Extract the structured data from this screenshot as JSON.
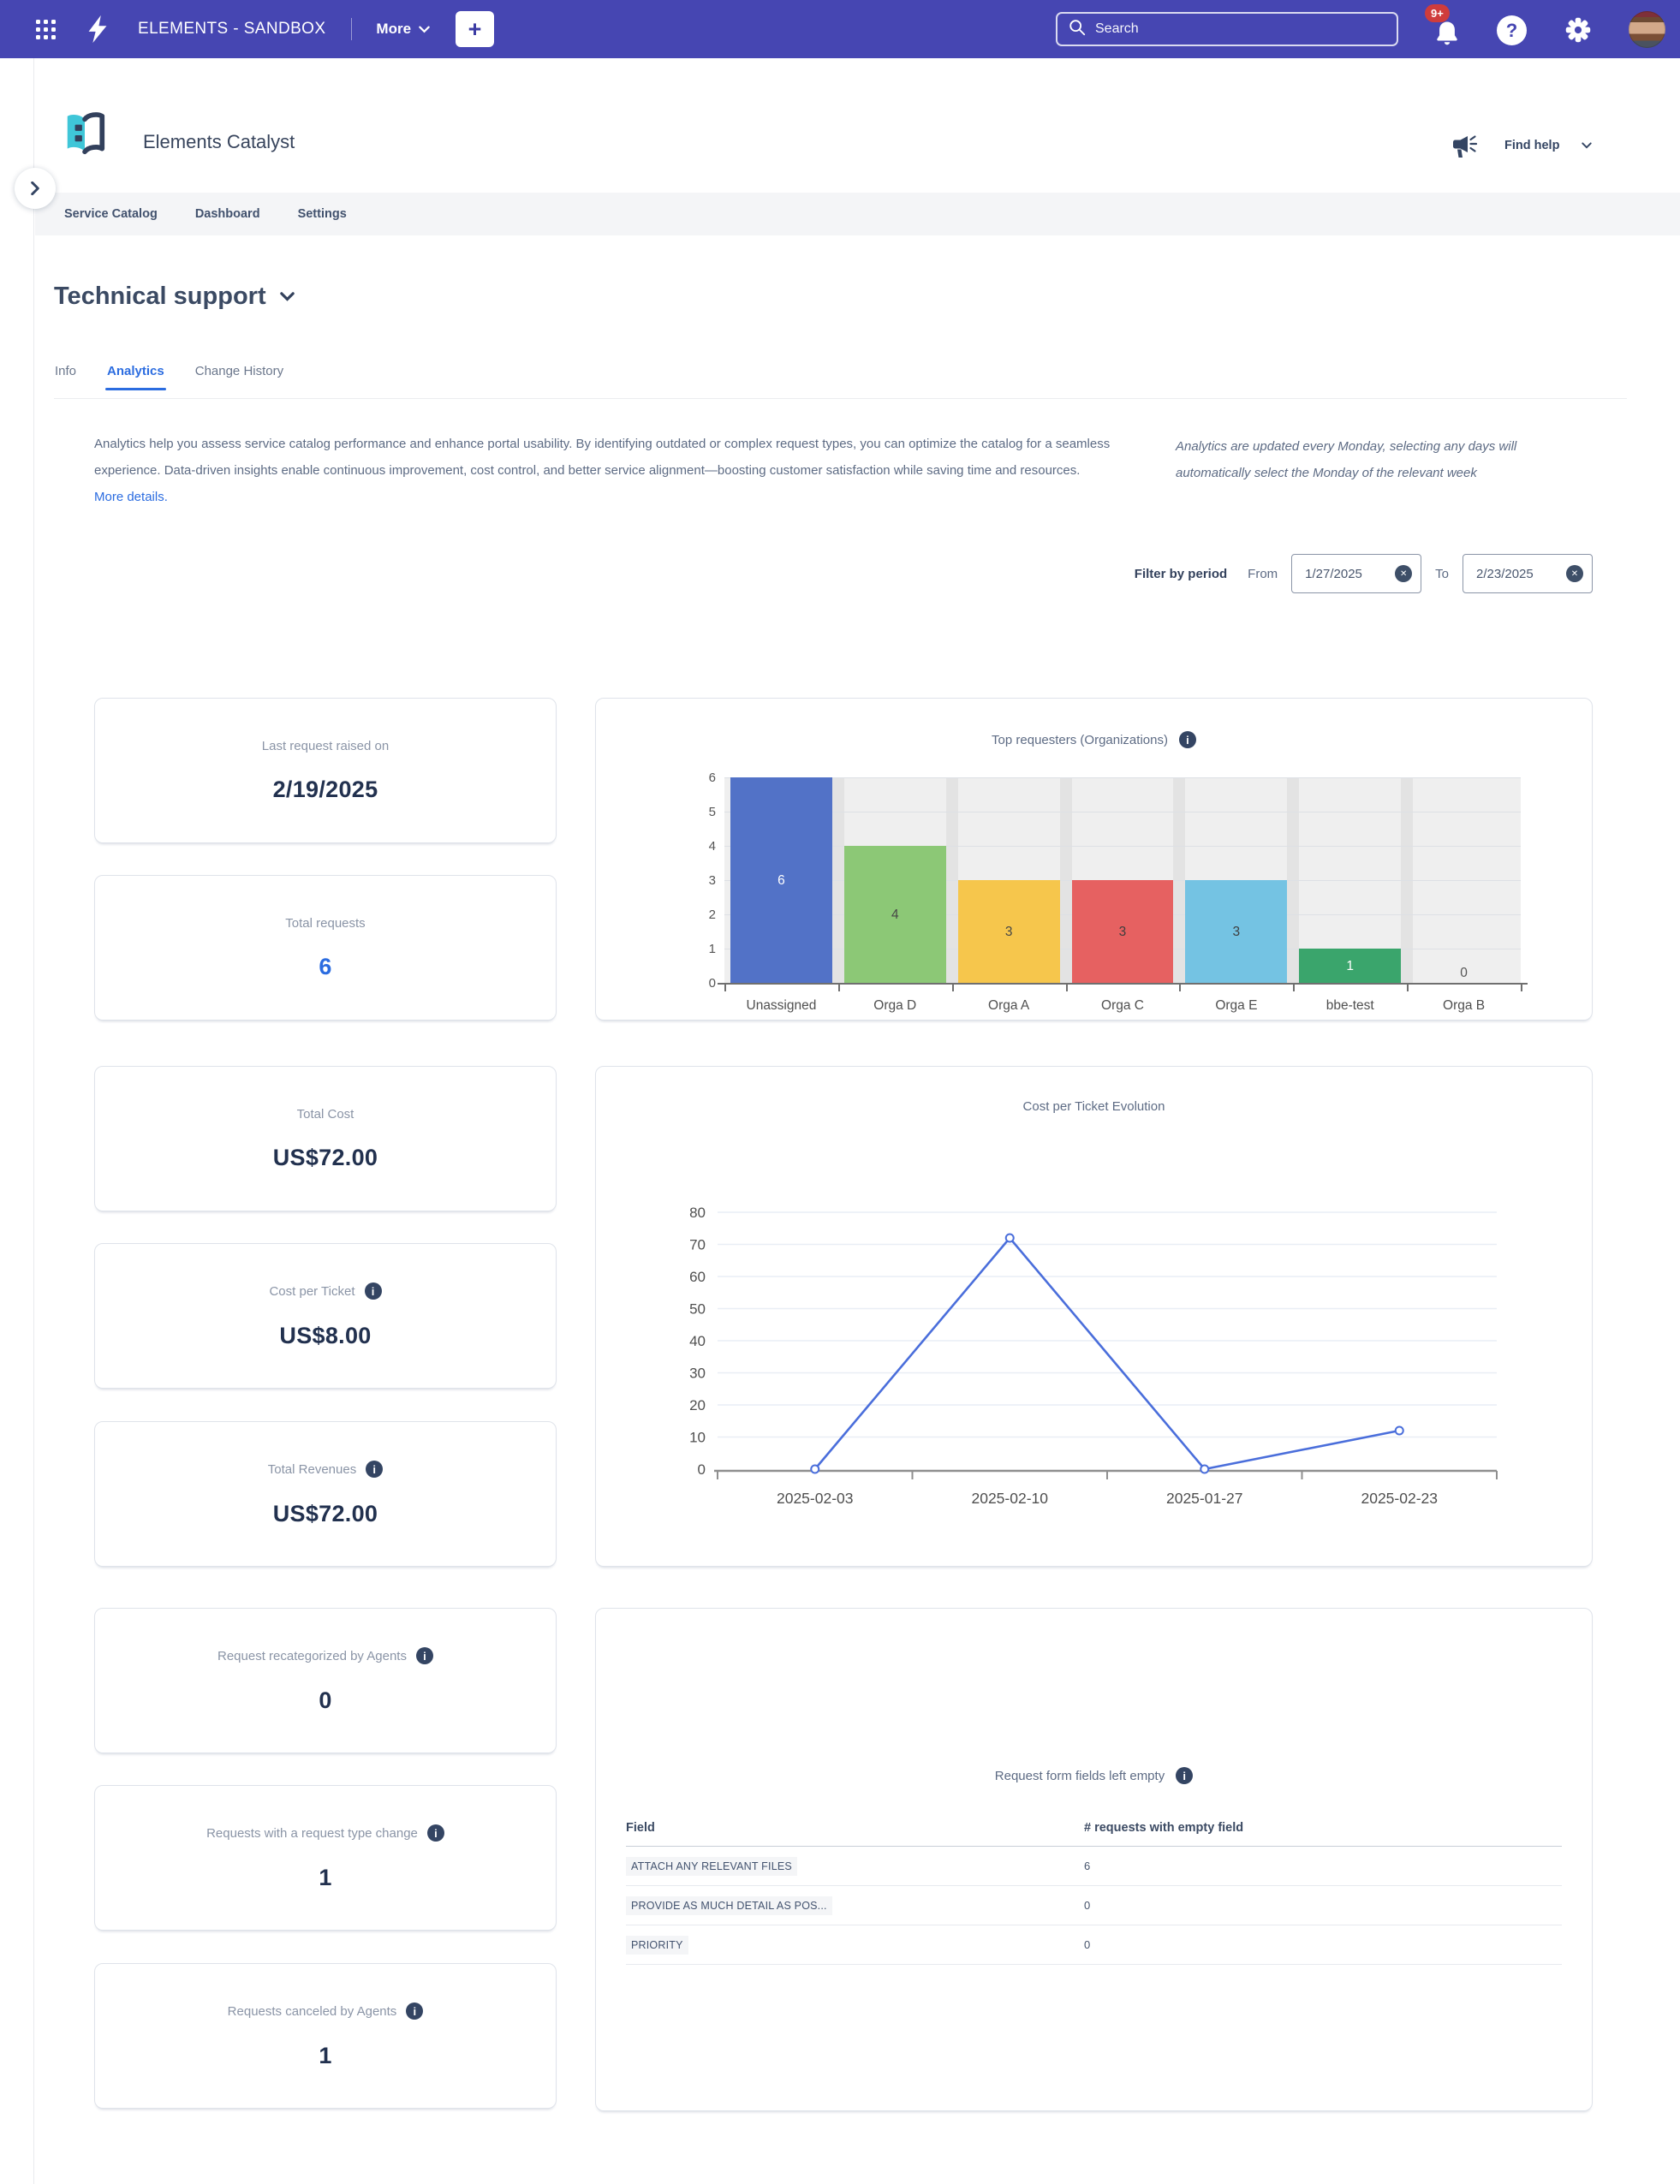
{
  "topbar": {
    "app_name": "ELEMENTS - SANDBOX",
    "more_label": "More",
    "plus_label": "+",
    "search_placeholder": "Search",
    "notification_badge": "9+"
  },
  "header": {
    "app_title": "Elements Catalyst",
    "find_help_label": "Find help"
  },
  "subnav": {
    "items": [
      "Service Catalog",
      "Dashboard",
      "Settings"
    ]
  },
  "page": {
    "title": "Technical support",
    "tabs": [
      "Info",
      "Analytics",
      "Change History"
    ],
    "active_tab": "Analytics",
    "description": "Analytics help you assess service catalog performance and enhance portal usability. By identifying outdated or complex request types, you can optimize the catalog for a seamless experience. Data-driven insights enable continuous improvement, cost control, and better service alignment—boosting customer satisfaction while saving time and resources.",
    "more_details_label": "More details.",
    "update_note": "Analytics are updated every Monday, selecting any days will automatically select the Monday of the relevant week",
    "filter": {
      "label": "Filter by period",
      "from_label": "From",
      "from_value": "1/27/2025",
      "to_label": "To",
      "to_value": "2/23/2025"
    }
  },
  "cards": [
    {
      "label": "Last request raised on",
      "value": "2/19/2025"
    },
    {
      "label": "Total requests",
      "value": "6"
    },
    {
      "label": "Total Cost",
      "value": "US$72.00"
    },
    {
      "label": "Cost per Ticket",
      "value": "US$8.00"
    },
    {
      "label": "Total Revenues",
      "value": "US$72.00"
    },
    {
      "label": "Request recategorized by Agents",
      "value": "0"
    },
    {
      "label": "Requests with a request type change",
      "value": "1"
    },
    {
      "label": "Requests canceled by Agents",
      "value": "1"
    }
  ],
  "chart_data": [
    {
      "type": "bar",
      "title": "Top requesters (Organizations)",
      "categories": [
        "Unassigned",
        "Orga D",
        "Orga A",
        "Orga C",
        "Orga E",
        "bbe-test",
        "Orga B"
      ],
      "values": [
        6,
        4,
        3,
        3,
        3,
        1,
        0
      ],
      "bar_colors": [
        "#5272c7",
        "#8cc876",
        "#f6c64c",
        "#e66161",
        "#74c3e3",
        "#3aa56c",
        "#cccccc"
      ],
      "label_colors": [
        "#ffffff",
        "#474747",
        "#474747",
        "#3e3e3e",
        "#3e3e3e",
        "#ffffff",
        "#555555"
      ],
      "ylim": [
        0,
        6
      ],
      "yticks": [
        0,
        1,
        2,
        3,
        4,
        5,
        6
      ],
      "legend": "none",
      "grid": true
    },
    {
      "type": "line",
      "title": "Cost per Ticket Evolution",
      "x": [
        "2025-02-03",
        "2025-02-10",
        "2025-01-27",
        "2025-02-23"
      ],
      "values": [
        0,
        72,
        0,
        12
      ],
      "ylim": [
        0,
        80
      ],
      "ytick_step": 10,
      "line_color": "#4a6edb",
      "grid": true,
      "legend": "none"
    }
  ],
  "table": {
    "title": "Request form fields left empty",
    "columns": [
      "Field",
      "# requests with empty field"
    ],
    "rows": [
      {
        "field": "ATTACH ANY RELEVANT FILES",
        "count": "6"
      },
      {
        "field": "PROVIDE AS MUCH DETAIL AS POS...",
        "count": "0"
      },
      {
        "field": "PRIORITY",
        "count": "0"
      }
    ]
  }
}
